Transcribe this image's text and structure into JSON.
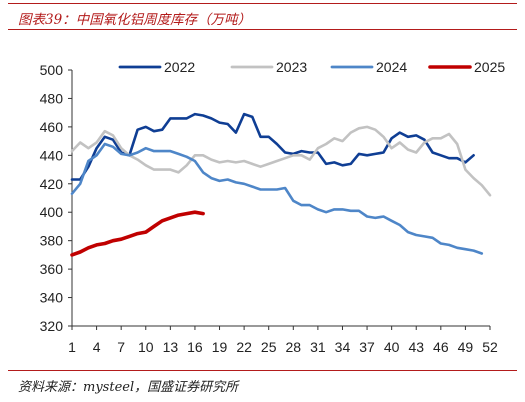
{
  "header": {
    "caption": "图表39：中国氧化铝周度库存（万吨）",
    "source": "资料来源：mysteel，国盛证券研究所"
  },
  "chart_data": {
    "type": "line",
    "title": "图表39：中国氧化铝周度库存（万吨）",
    "xlabel": "",
    "ylabel": "",
    "xlim": [
      1,
      52
    ],
    "ylim": [
      320,
      500
    ],
    "yticks": [
      320,
      340,
      360,
      380,
      400,
      420,
      440,
      460,
      480,
      500
    ],
    "xticks": [
      1,
      4,
      7,
      10,
      13,
      16,
      19,
      22,
      25,
      28,
      31,
      34,
      37,
      40,
      43,
      46,
      49,
      52
    ],
    "grid": false,
    "legend_position": "top",
    "series": [
      {
        "name": "2022",
        "color": "#0f3e94",
        "x": [
          1,
          2,
          3,
          4,
          5,
          6,
          7,
          8,
          9,
          10,
          11,
          12,
          13,
          14,
          15,
          16,
          17,
          18,
          19,
          20,
          21,
          22,
          23,
          24,
          25,
          26,
          27,
          28,
          29,
          30,
          31,
          32,
          33,
          34,
          35,
          36,
          37,
          38,
          39,
          40,
          41,
          42,
          43,
          44,
          45,
          46,
          47,
          48,
          49,
          50
        ],
        "values": [
          423,
          423,
          432,
          445,
          453,
          451,
          442,
          440,
          458,
          460,
          457,
          458,
          466,
          466,
          466,
          469,
          468,
          466,
          463,
          462,
          456,
          469,
          467,
          453,
          453,
          448,
          442,
          441,
          443,
          442,
          442,
          434,
          435,
          433,
          434,
          441,
          440,
          441,
          442,
          452,
          456,
          453,
          454,
          451,
          442,
          440,
          438,
          438,
          435,
          440
        ]
      },
      {
        "name": "2023",
        "color": "#c2c2c2",
        "x": [
          1,
          2,
          3,
          4,
          5,
          6,
          7,
          8,
          9,
          10,
          11,
          12,
          13,
          14,
          15,
          16,
          17,
          18,
          19,
          20,
          21,
          22,
          23,
          24,
          25,
          26,
          27,
          28,
          29,
          30,
          31,
          32,
          33,
          34,
          35,
          36,
          37,
          38,
          39,
          40,
          41,
          42,
          43,
          44,
          45,
          46,
          47,
          48,
          49,
          50,
          51,
          52
        ],
        "values": [
          443,
          449,
          445,
          449,
          457,
          454,
          445,
          440,
          437,
          433,
          430,
          430,
          430,
          428,
          433,
          440,
          440,
          437,
          435,
          436,
          435,
          436,
          434,
          432,
          434,
          436,
          438,
          440,
          440,
          437,
          445,
          448,
          452,
          450,
          456,
          459,
          460,
          458,
          453,
          445,
          449,
          444,
          442,
          449,
          452,
          452,
          455,
          448,
          430,
          424,
          419,
          412
        ]
      },
      {
        "name": "2024",
        "color": "#4e86c8",
        "x": [
          1,
          2,
          3,
          4,
          5,
          6,
          7,
          8,
          9,
          10,
          11,
          12,
          13,
          14,
          15,
          16,
          17,
          18,
          19,
          20,
          21,
          22,
          23,
          24,
          25,
          26,
          27,
          28,
          29,
          30,
          31,
          32,
          33,
          34,
          35,
          36,
          37,
          38,
          39,
          40,
          41,
          42,
          43,
          44,
          45,
          46,
          47,
          48,
          49,
          50,
          51
        ],
        "values": [
          413,
          420,
          436,
          440,
          448,
          446,
          441,
          440,
          442,
          445,
          443,
          443,
          443,
          441,
          439,
          436,
          428,
          424,
          422,
          423,
          421,
          420,
          418,
          416,
          416,
          416,
          417,
          408,
          405,
          405,
          402,
          400,
          402,
          402,
          401,
          401,
          397,
          396,
          397,
          394,
          391,
          386,
          384,
          383,
          382,
          378,
          377,
          375,
          374,
          373,
          371
        ]
      },
      {
        "name": "2025",
        "color": "#c00000",
        "x": [
          1,
          2,
          3,
          4,
          5,
          6,
          7,
          8,
          9,
          10,
          11,
          12,
          13,
          14,
          15,
          16,
          17
        ],
        "values": [
          370,
          372,
          375,
          377,
          378,
          380,
          381,
          383,
          385,
          386,
          390,
          394,
          396,
          398,
          399,
          400,
          399
        ]
      }
    ]
  }
}
